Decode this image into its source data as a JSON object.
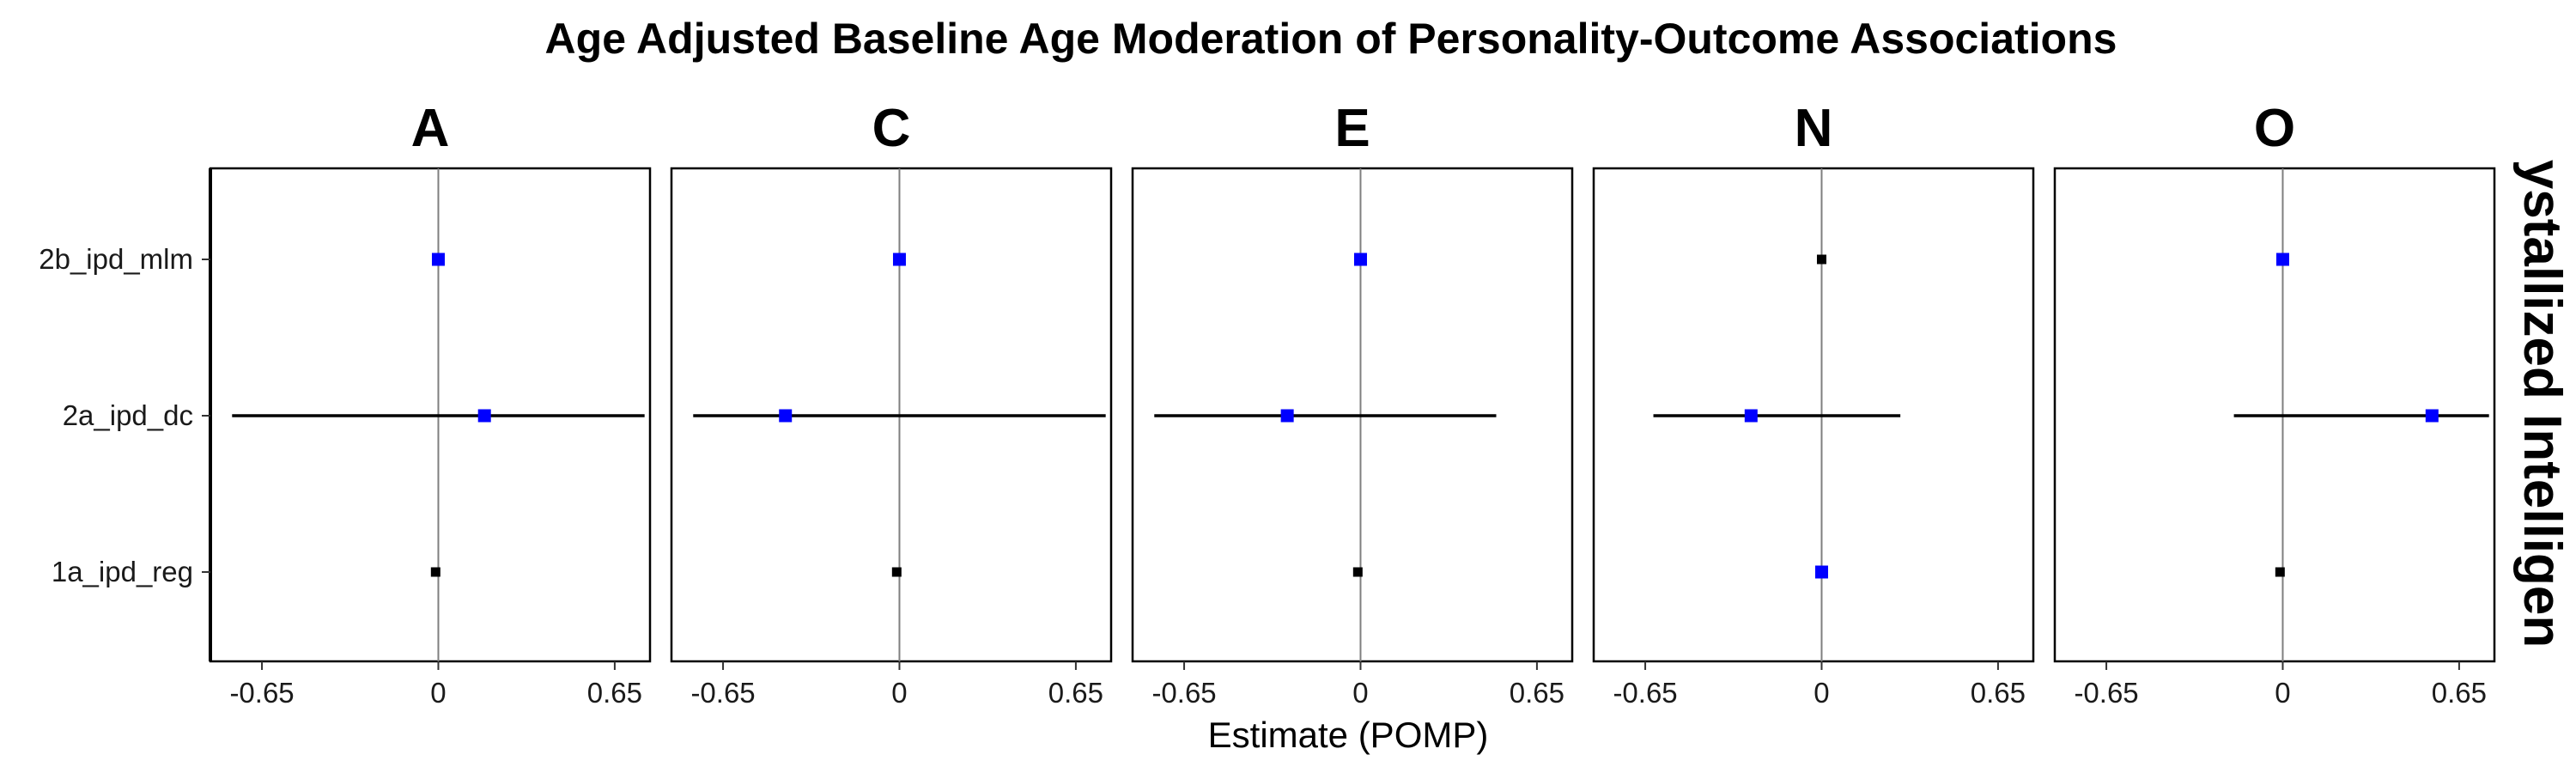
{
  "chart_data": {
    "type": "scatter",
    "title": "Age Adjusted Baseline Age Moderation of Personality-Outcome Associations",
    "xlabel": "Estimate (POMP)",
    "ylabel": "",
    "strip_label": "ystallized Intelligen",
    "xlim": [
      -0.84,
      0.78
    ],
    "x_ticks": [
      {
        "value": -0.65,
        "label": "-0.65"
      },
      {
        "value": 0,
        "label": "0"
      },
      {
        "value": 0.65,
        "label": "0.65"
      }
    ],
    "y_categories": [
      "2b_ipd_mlm",
      "2a_ipd_dc",
      "1a_ipd_reg"
    ],
    "reference_line": 0,
    "grid": false,
    "colors": {
      "significant": "#0000ff",
      "nonsignificant": "#000000"
    },
    "panels": [
      {
        "facet": "A",
        "points": [
          {
            "model": "2b_ipd_mlm",
            "estimate": 0.0,
            "lower": 0.0,
            "upper": 0.0,
            "significant": true
          },
          {
            "model": "2a_ipd_dc",
            "estimate": 0.17,
            "lower": -0.76,
            "upper": 0.76,
            "significant": true
          },
          {
            "model": "1a_ipd_reg",
            "estimate": -0.01,
            "lower": -0.01,
            "upper": -0.01,
            "significant": false
          }
        ]
      },
      {
        "facet": "C",
        "points": [
          {
            "model": "2b_ipd_mlm",
            "estimate": 0.0,
            "lower": 0.0,
            "upper": 0.0,
            "significant": true
          },
          {
            "model": "2a_ipd_dc",
            "estimate": -0.42,
            "lower": -0.76,
            "upper": 0.76,
            "significant": true
          },
          {
            "model": "1a_ipd_reg",
            "estimate": -0.01,
            "lower": -0.01,
            "upper": -0.01,
            "significant": false
          }
        ]
      },
      {
        "facet": "E",
        "points": [
          {
            "model": "2b_ipd_mlm",
            "estimate": 0.0,
            "lower": 0.0,
            "upper": 0.0,
            "significant": true
          },
          {
            "model": "2a_ipd_dc",
            "estimate": -0.27,
            "lower": -0.76,
            "upper": 0.5,
            "significant": true
          },
          {
            "model": "1a_ipd_reg",
            "estimate": -0.01,
            "lower": -0.01,
            "upper": -0.01,
            "significant": false
          }
        ]
      },
      {
        "facet": "N",
        "points": [
          {
            "model": "2b_ipd_mlm",
            "estimate": 0.0,
            "lower": 0.0,
            "upper": 0.0,
            "significant": false
          },
          {
            "model": "2a_ipd_dc",
            "estimate": -0.26,
            "lower": -0.62,
            "upper": 0.29,
            "significant": true
          },
          {
            "model": "1a_ipd_reg",
            "estimate": 0.0,
            "lower": 0.0,
            "upper": 0.0,
            "significant": true
          }
        ]
      },
      {
        "facet": "O",
        "points": [
          {
            "model": "2b_ipd_mlm",
            "estimate": 0.0,
            "lower": 0.0,
            "upper": 0.0,
            "significant": true
          },
          {
            "model": "2a_ipd_dc",
            "estimate": 0.55,
            "lower": -0.18,
            "upper": 0.76,
            "significant": true
          },
          {
            "model": "1a_ipd_reg",
            "estimate": -0.01,
            "lower": -0.01,
            "upper": -0.01,
            "significant": false
          }
        ]
      }
    ]
  }
}
